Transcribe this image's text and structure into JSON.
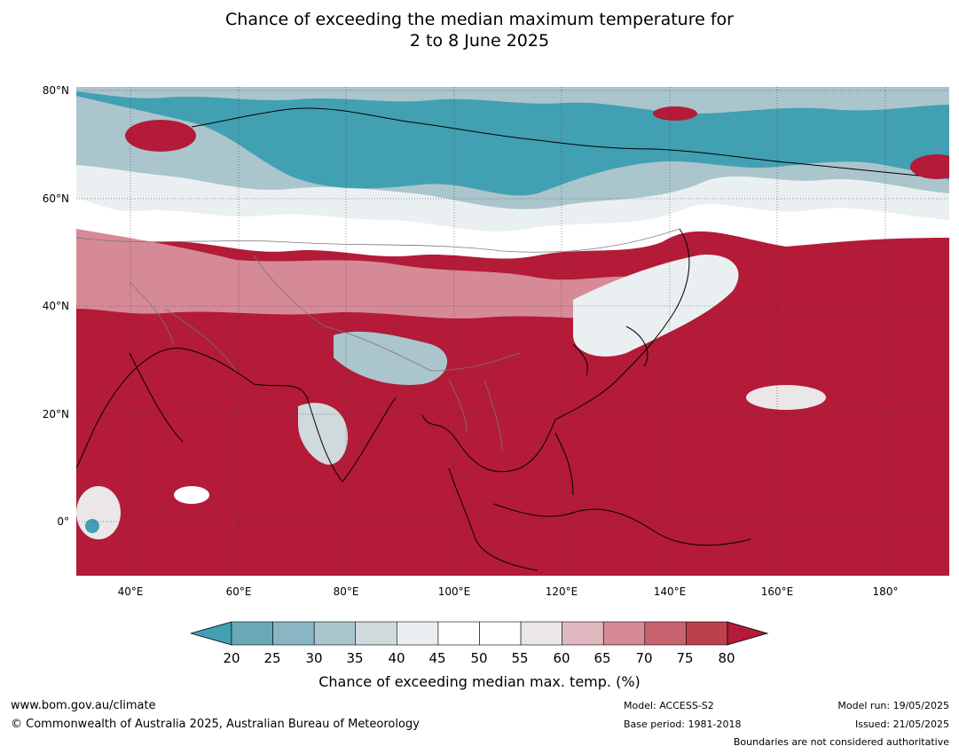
{
  "title": {
    "line1": "Chance of exceeding the median maximum temperature for",
    "line2": "2 to 8 June 2025"
  },
  "map": {
    "lat_labels": [
      "80°N",
      "60°N",
      "40°N",
      "20°N",
      "0°"
    ],
    "lon_labels": [
      "40°E",
      "60°E",
      "80°E",
      "100°E",
      "120°E",
      "140°E",
      "160°E",
      "180°"
    ],
    "colors": {
      "below": "#42a0b3",
      "neutral": "#ffffff",
      "above": "#b31b39"
    }
  },
  "colorbar": {
    "ticks": [
      "20",
      "25",
      "30",
      "35",
      "40",
      "45",
      "50",
      "55",
      "60",
      "65",
      "70",
      "75",
      "80"
    ],
    "colors": [
      "#6aa8b5",
      "#8ab6c3",
      "#abc5cd",
      "#d0d9dc",
      "#eaf0f1",
      "#ffffff",
      "#ffffff",
      "#ebe6e8",
      "#dfb8bf",
      "#d68a96",
      "#c9626f",
      "#bb414f"
    ],
    "under_color": "#42a0b3",
    "over_color": "#b31b39",
    "label": "Chance of exceeding median max. temp. (%)"
  },
  "footer": {
    "website": "www.bom.gov.au/climate",
    "copyright": "© Commonwealth of Australia 2025, Australian Bureau of Meteorology",
    "model": "Model: ACCESS-S2",
    "base_period": "Base period: 1981-2018",
    "model_run": "Model run: 19/05/2025",
    "issued": "Issued: 21/05/2025",
    "disclaimer": "Boundaries are not considered authoritative"
  }
}
